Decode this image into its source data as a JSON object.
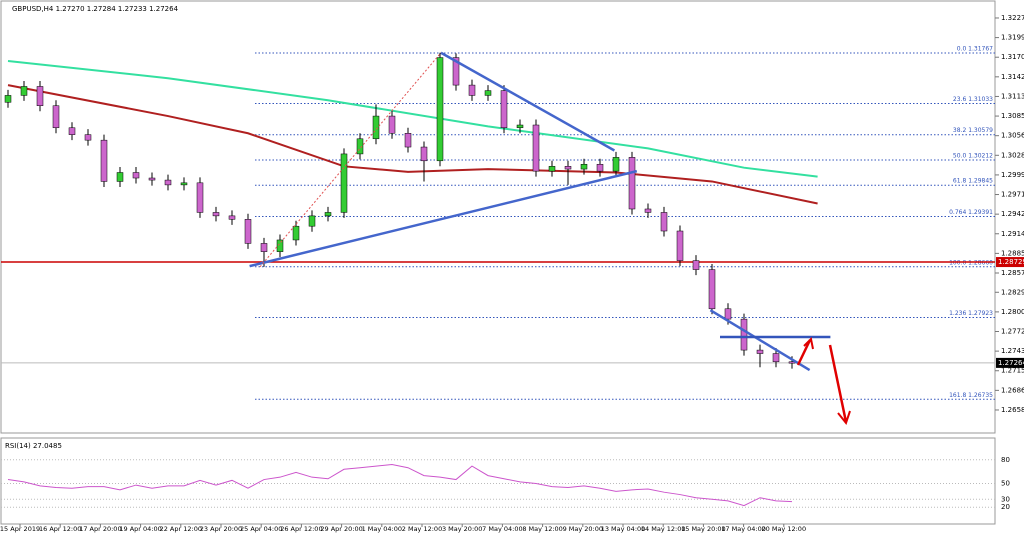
{
  "chart_data": [
    {
      "type": "candlestick",
      "title": "GBPUSD,H4 1.27270 1.27284 1.27233 1.27264",
      "ylim": [
        1.2626,
        1.3242
      ],
      "yticks": [
        1.32275,
        {
          "value": 1.3199,
          "label": "1.31990"
        },
        1.31705,
        {
          "value": 1.3142,
          "label": "1.31420"
        },
        1.31135,
        {
          "value": 1.3085,
          "label": "1.30850"
        },
        1.30565,
        {
          "value": 1.3028,
          "label": "1.30280"
        },
        1.29995,
        {
          "value": 1.2971,
          "label": "1.29710"
        },
        1.29425,
        {
          "value": 1.2914,
          "label": "1.29140"
        },
        1.28855,
        {
          "value": 1.2857,
          "label": "1.28570"
        },
        {
          "value": 1.2829,
          "label": "1.28290"
        },
        1.28005,
        {
          "value": 1.2772,
          "label": "1.27720"
        },
        1.27435,
        {
          "value": 1.2715,
          "label": "1.27150"
        },
        1.26865,
        {
          "value": 1.2658,
          "label": "1.26580"
        }
      ],
      "x_tick_labels": [
        "15 Apr 2019",
        "16 Apr 12:00",
        "17 Apr 20:00",
        "19 Apr 04:00",
        "22 Apr 12:00",
        "23 Apr 20:00",
        "25 Apr 04:00",
        "26 Apr 12:00",
        "29 Apr 20:00",
        "1 May 04:00",
        "2 May 12:00",
        "3 May 20:00",
        "7 May 04:00",
        "8 May 12:00",
        "9 May 20:00",
        "13 May 04:00",
        "14 May 12:00",
        "15 May 20:00",
        "17 May 04:00",
        "20 May 12:00"
      ],
      "up_color": "#33cc33",
      "down_color": "#cc66cc",
      "open": [
        1.3105,
        1.3115,
        1.3128,
        1.31,
        1.3068,
        1.3058,
        1.305,
        1.299,
        1.3003,
        1.2995,
        1.2992,
        1.2985,
        1.2988,
        1.2945,
        1.294,
        1.2935,
        1.29,
        1.2888,
        1.2905,
        1.2925,
        1.294,
        1.2945,
        1.303,
        1.3052,
        1.3085,
        1.306,
        1.304,
        1.302,
        1.317,
        1.313,
        1.3115,
        1.3122,
        1.3068,
        1.3072,
        1.3005,
        1.3012,
        1.3008,
        1.3015,
        1.3005,
        1.3025,
        1.295,
        1.2945,
        1.2918,
        1.2875,
        1.2862,
        1.2805,
        1.279,
        1.2745,
        1.274,
        1.2728
      ],
      "high": [
        1.3123,
        1.3136,
        1.3136,
        1.3108,
        1.3076,
        1.3066,
        1.3058,
        1.3011,
        1.3011,
        1.3003,
        1.3,
        1.2996,
        1.2996,
        1.2953,
        1.2948,
        1.2943,
        1.2908,
        1.2913,
        1.2933,
        1.2948,
        1.2953,
        1.3038,
        1.306,
        1.3102,
        1.3093,
        1.3068,
        1.3048,
        1.3177,
        1.3176,
        1.3138,
        1.313,
        1.313,
        1.308,
        1.308,
        1.302,
        1.302,
        1.3023,
        1.3023,
        1.3033,
        1.3033,
        1.2958,
        1.2953,
        1.2926,
        1.2883,
        1.287,
        1.2813,
        1.2798,
        1.2753,
        1.2748,
        1.2736
      ],
      "low": [
        1.3097,
        1.3107,
        1.3092,
        1.306,
        1.305,
        1.3042,
        1.2982,
        1.2982,
        1.2987,
        1.2984,
        1.2977,
        1.2977,
        1.2937,
        1.2932,
        1.2927,
        1.2892,
        1.2866,
        1.288,
        1.2897,
        1.2917,
        1.2932,
        1.2937,
        1.3022,
        1.3044,
        1.3052,
        1.3032,
        1.299,
        1.3012,
        1.3122,
        1.3107,
        1.3107,
        1.306,
        1.306,
        1.2997,
        1.2997,
        1.2985,
        1.3,
        1.2997,
        1.2997,
        1.2942,
        1.2937,
        1.291,
        1.2867,
        1.2854,
        1.2797,
        1.2782,
        1.2737,
        1.272,
        1.272,
        1.2718
      ],
      "close": [
        1.3115,
        1.3128,
        1.31,
        1.3068,
        1.3058,
        1.305,
        1.299,
        1.3003,
        1.2995,
        1.2992,
        1.2985,
        1.2988,
        1.2945,
        1.294,
        1.2935,
        1.29,
        1.2888,
        1.2905,
        1.2925,
        1.294,
        1.2945,
        1.303,
        1.3052,
        1.3085,
        1.306,
        1.304,
        1.302,
        1.317,
        1.313,
        1.3115,
        1.3122,
        1.3068,
        1.3072,
        1.3005,
        1.3012,
        1.3008,
        1.3015,
        1.3005,
        1.3025,
        1.295,
        1.2945,
        1.2918,
        1.2875,
        1.2862,
        1.2805,
        1.279,
        1.2745,
        1.274,
        1.2728,
        1.2726
      ],
      "moving_averages": [
        {
          "color": "#33e0a0",
          "x": [
            0,
            10,
            20,
            30,
            40,
            46,
            50.6
          ],
          "values": [
            1.3165,
            1.314,
            1.3108,
            1.307,
            1.3038,
            1.301,
            1.2997
          ]
        },
        {
          "color": "#b02020",
          "x": [
            0,
            10,
            15,
            21,
            25,
            30,
            38,
            44,
            50.6
          ],
          "values": [
            1.313,
            1.3085,
            1.306,
            1.3012,
            1.3004,
            1.3008,
            1.3003,
            1.299,
            1.2958
          ]
        }
      ],
      "trendlines": [
        {
          "color": "#4466cc",
          "x": [
            15.1,
            39.3
          ],
          "values": [
            1.2867,
            1.3005
          ]
        },
        {
          "color": "#4466cc",
          "x": [
            27.06,
            37.9
          ],
          "values": [
            1.3177,
            1.3035
          ]
        },
        {
          "color": "#4466cc",
          "x": [
            43.9,
            50.1
          ],
          "values": [
            1.2803,
            1.2716
          ]
        },
        {
          "color": "#3355bb",
          "x": [
            44.5,
            51.4
          ],
          "values": [
            1.2764,
            1.2764
          ]
        },
        {
          "color": "#e05050",
          "x": [
            15.75,
            27.06
          ],
          "values": [
            1.2866,
            1.3177
          ],
          "dashed": true
        }
      ],
      "fib_levels": [
        {
          "label": "0.0 1.31767",
          "value": 1.31767
        },
        {
          "label": "23.6 1.31033",
          "value": 1.31033
        },
        {
          "label": "38.2 1.30579",
          "value": 1.30579
        },
        {
          "label": "50.0 1.30212",
          "value": 1.30212
        },
        {
          "label": "61.8 1.29845",
          "value": 1.29845
        },
        {
          "label": "0.764 1.29391",
          "value": 1.29391
        },
        {
          "label": "100.0 1.28660",
          "value": 1.2866
        },
        {
          "label": "1.236 1.27923",
          "value": 1.27923
        },
        {
          "label": "161.8 1.26735",
          "value": 1.26735
        }
      ],
      "levels": [
        {
          "value": 1.28729,
          "color": "#cc0000"
        },
        {
          "value": 1.27264,
          "color": "#000000"
        }
      ]
    },
    {
      "type": "line",
      "title": "RSI(14) 27.0485",
      "color": "#cc55cc",
      "ylim": [
        0,
        100
      ],
      "yticks": [
        80,
        50,
        30,
        20
      ],
      "values": [
        55,
        52,
        47,
        45,
        44,
        46,
        46,
        42,
        48,
        44,
        47,
        47,
        54,
        48,
        54,
        44,
        55,
        58,
        64,
        58,
        56,
        68,
        70,
        72,
        74,
        70,
        60,
        58,
        55,
        72,
        60,
        56,
        52,
        50,
        46,
        45,
        47,
        44,
        40,
        42,
        43,
        39,
        36,
        32,
        30,
        28,
        22,
        32,
        28,
        27
      ]
    }
  ]
}
